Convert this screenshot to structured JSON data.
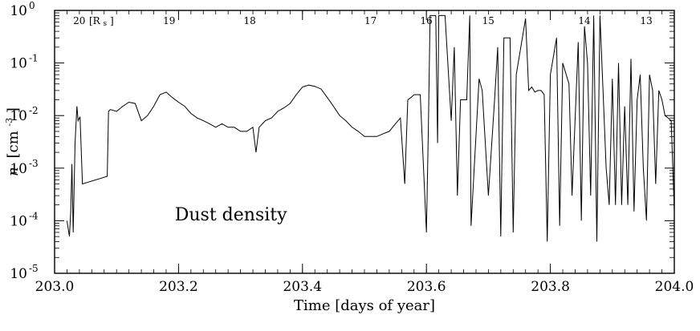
{
  "chart_data": {
    "type": "line",
    "title": "",
    "xlabel": "Time [days of year]",
    "ylabel_main": "n",
    "ylabel_unit": "[cm",
    "ylabel_exp": "-3",
    "ylabel_close": "]",
    "xlim": [
      203.0,
      204.0
    ],
    "ylim": [
      1e-05,
      1
    ],
    "yscale": "log",
    "grid": false,
    "line_color": "#000000",
    "x_ticks": [
      {
        "value": 203.0,
        "label": "203.0"
      },
      {
        "value": 203.2,
        "label": "203.2"
      },
      {
        "value": 203.4,
        "label": "203.4"
      },
      {
        "value": 203.6,
        "label": "203.6"
      },
      {
        "value": 203.8,
        "label": "203.8"
      },
      {
        "value": 204.0,
        "label": "204.0"
      }
    ],
    "y_ticks": [
      {
        "value": 1,
        "base": "10",
        "exp": "0"
      },
      {
        "value": 0.1,
        "base": "10",
        "exp": "-1"
      },
      {
        "value": 0.01,
        "base": "10",
        "exp": "-2"
      },
      {
        "value": 0.001,
        "base": "10",
        "exp": "-3"
      },
      {
        "value": 0.0001,
        "base": "10",
        "exp": "-4"
      },
      {
        "value": 1e-05,
        "base": "10",
        "exp": "-5"
      }
    ],
    "top_axis_unit": "[R",
    "top_axis_unit_sub": "s",
    "top_axis_unit_close": "]",
    "top_axis_labels": [
      {
        "x": 203.03,
        "label": "20"
      },
      {
        "x": 203.175,
        "label": "19"
      },
      {
        "x": 203.305,
        "label": "18"
      },
      {
        "x": 203.5,
        "label": "17"
      },
      {
        "x": 203.59,
        "label": "16"
      },
      {
        "x": 203.69,
        "label": "15"
      },
      {
        "x": 203.845,
        "label": "14"
      },
      {
        "x": 203.945,
        "label": "13"
      }
    ],
    "annotation": "Dust density",
    "annotation_pos": {
      "x": 203.08,
      "y": 0.00012
    },
    "series": [
      {
        "x": [
          203.02,
          203.024,
          203.026,
          203.028,
          203.03,
          203.033,
          203.036,
          203.038,
          203.041,
          203.045,
          203.085,
          203.087,
          203.09,
          203.1,
          203.11,
          203.12,
          203.13,
          203.14,
          203.15,
          203.16,
          203.17,
          203.18,
          203.19,
          203.2,
          203.21,
          203.22,
          203.23,
          203.24,
          203.25,
          203.26,
          203.27,
          203.28,
          203.29,
          203.3,
          203.31,
          203.32,
          203.325,
          203.33,
          203.34,
          203.35,
          203.36,
          203.37,
          203.38,
          203.39,
          203.4,
          203.41,
          203.42,
          203.43,
          203.44,
          203.45,
          203.46,
          203.47,
          203.48,
          203.49,
          203.5,
          203.51,
          203.52,
          203.53,
          203.54,
          203.55,
          203.558,
          203.565,
          203.57,
          203.575,
          203.58,
          203.59,
          203.6,
          203.603,
          203.606,
          203.615,
          203.618,
          203.62,
          203.625,
          203.63,
          203.64,
          203.645,
          203.65,
          203.655,
          203.665,
          203.67,
          203.672,
          203.685,
          203.69,
          203.7,
          203.71,
          203.715,
          203.72,
          203.725,
          203.735,
          203.74,
          203.745,
          203.76,
          203.765,
          203.77,
          203.775,
          203.78,
          203.785,
          203.79,
          203.795,
          203.8,
          203.81,
          203.815,
          203.82,
          203.83,
          203.835,
          203.845,
          203.85,
          203.855,
          203.86,
          203.865,
          203.87,
          203.875,
          203.88,
          203.885,
          203.89,
          203.895,
          203.9,
          203.905,
          203.91,
          203.915,
          203.92,
          203.925,
          203.93,
          203.935,
          203.94,
          203.945,
          203.95,
          203.955,
          203.96,
          203.965,
          203.97,
          203.975,
          203.98,
          203.985,
          203.99,
          203.995,
          204.0
        ],
        "values": [
          0.0001,
          5e-05,
          0.00015,
          0.0012,
          6e-05,
          0.003,
          0.015,
          0.008,
          0.0095,
          0.0005,
          0.0007,
          0.012,
          0.013,
          0.012,
          0.015,
          0.018,
          0.017,
          0.008,
          0.01,
          0.015,
          0.025,
          0.028,
          0.022,
          0.018,
          0.015,
          0.011,
          0.009,
          0.008,
          0.007,
          0.006,
          0.007,
          0.006,
          0.006,
          0.005,
          0.005,
          0.006,
          0.002,
          0.006,
          0.008,
          0.009,
          0.012,
          0.014,
          0.017,
          0.025,
          0.035,
          0.038,
          0.036,
          0.032,
          0.022,
          0.015,
          0.01,
          0.008,
          0.006,
          0.005,
          0.004,
          0.004,
          0.004,
          0.0045,
          0.005,
          0.007,
          0.009,
          0.0005,
          0.02,
          0.022,
          0.025,
          0.025,
          6e-05,
          0.0045,
          0.8,
          0.8,
          0.003,
          0.8,
          0.8,
          0.8,
          0.008,
          0.2,
          0.0003,
          0.02,
          0.02,
          0.8,
          8e-05,
          0.05,
          0.03,
          0.0003,
          0.02,
          0.2,
          5e-05,
          0.3,
          0.3,
          6e-05,
          0.06,
          0.7,
          0.03,
          0.035,
          0.028,
          0.03,
          0.03,
          0.025,
          4e-05,
          0.06,
          0.3,
          8e-05,
          0.1,
          0.04,
          0.0003,
          0.25,
          0.0001,
          0.5,
          0.1,
          0.0003,
          0.8,
          4e-05,
          0.8,
          0.03,
          0.001,
          0.0002,
          0.05,
          0.0002,
          0.1,
          0.0002,
          0.015,
          0.0002,
          0.12,
          0.00015,
          0.02,
          0.06,
          0.001,
          0.0001,
          0.06,
          0.03,
          0.0005,
          0.03,
          0.02,
          0.01,
          0.009,
          0.008,
          0.00015
        ]
      }
    ]
  }
}
